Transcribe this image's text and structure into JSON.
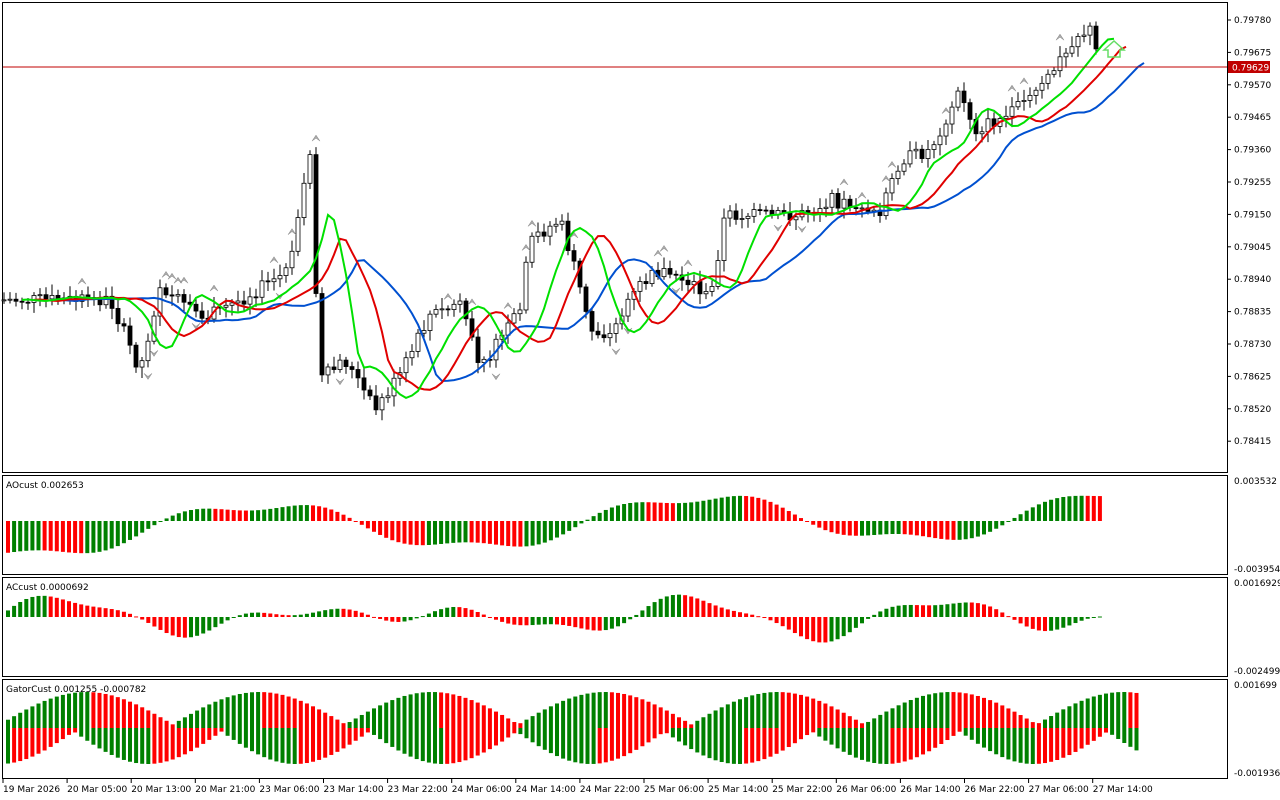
{
  "price_panel": {
    "y_ticks": [
      "0.79780",
      "0.79675",
      "0.79570",
      "0.79465",
      "0.79360",
      "0.79255",
      "0.79150",
      "0.79045",
      "0.78940",
      "0.78835",
      "0.78730",
      "0.78625",
      "0.78520",
      "0.78415"
    ],
    "current_price": "0.79629",
    "current_line_color": "#c00000"
  },
  "ao_panel": {
    "title": "AOcust 0.002653",
    "y_max": "0.003532",
    "y_min": "-0.003954"
  },
  "ac_panel": {
    "title": "ACcust 0.0000692",
    "y_max": "0.0016929",
    "y_min": "-0.0024995"
  },
  "gator_panel": {
    "title": "GatorCust 0.001255 -0.000782",
    "y_max": "0.001699",
    "y_min": "-0.001936"
  },
  "time_axis": {
    "labels": [
      "19 Mar 2026",
      "20 Mar 05:00",
      "20 Mar 13:00",
      "20 Mar 21:00",
      "23 Mar 06:00",
      "23 Mar 14:00",
      "23 Mar 22:00",
      "24 Mar 06:00",
      "24 Mar 14:00",
      "24 Mar 22:00",
      "25 Mar 06:00",
      "25 Mar 14:00",
      "25 Mar 22:00",
      "26 Mar 06:00",
      "26 Mar 14:00",
      "26 Mar 22:00",
      "27 Mar 06:00",
      "27 Mar 14:00"
    ]
  },
  "colors": {
    "up_bar": "#008000",
    "down_bar": "#ff0000",
    "alligator_lips": "#00e000",
    "alligator_teeth": "#e00000",
    "alligator_jaw": "#0050d0",
    "signal_arrow": "#66dd66"
  },
  "icons": {
    "fractal_marker": "fractal-arrow-icon",
    "buy_signal": "up-arrow-icon"
  }
}
